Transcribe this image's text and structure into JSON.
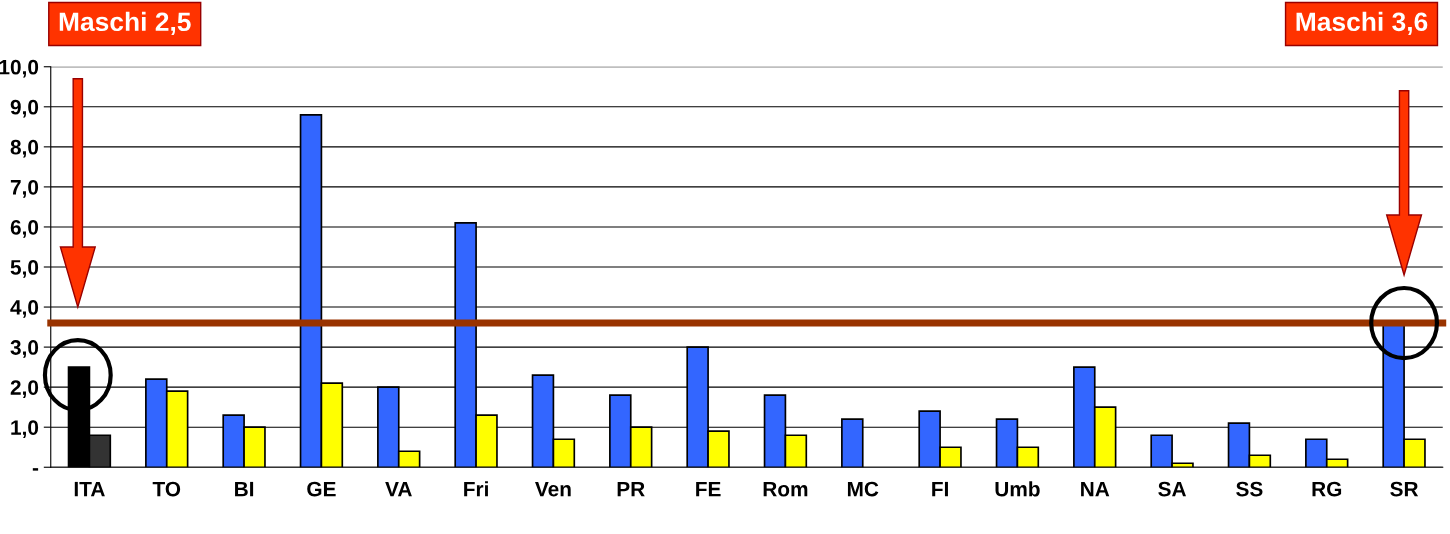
{
  "chart_data": {
    "type": "bar",
    "categories": [
      "ITA",
      "TO",
      "BI",
      "GE",
      "VA",
      "Fri",
      "Ven",
      "PR",
      "FE",
      "Rom",
      "MC",
      "FI",
      "Umb",
      "NA",
      "SA",
      "SS",
      "RG",
      "SR"
    ],
    "series": [
      {
        "colors": [
          "#000000",
          "#3366ff",
          "#3366ff",
          "#3366ff",
          "#3366ff",
          "#3366ff",
          "#3366ff",
          "#3366ff",
          "#3366ff",
          "#3366ff",
          "#3366ff",
          "#3366ff",
          "#3366ff",
          "#3366ff",
          "#3366ff",
          "#3366ff",
          "#3366ff",
          "#3366ff"
        ],
        "values": [
          2.5,
          2.2,
          1.3,
          8.8,
          2.0,
          6.1,
          2.3,
          1.8,
          3.0,
          1.8,
          1.2,
          1.4,
          1.2,
          2.5,
          0.8,
          1.1,
          0.7,
          3.6
        ]
      },
      {
        "colors": [
          "#333333",
          "#ffff00",
          "#ffff00",
          "#ffff00",
          "#ffff00",
          "#ffff00",
          "#ffff00",
          "#ffff00",
          "#ffff00",
          "#ffff00",
          "#ffff00",
          "#ffff00",
          "#ffff00",
          "#ffff00",
          "#ffff00",
          "#ffff00",
          "#ffff00",
          "#ffff00"
        ],
        "values": [
          0.8,
          1.9,
          1.0,
          2.1,
          0.4,
          1.3,
          0.7,
          1.0,
          0.9,
          0.8,
          null,
          0.5,
          0.5,
          1.5,
          0.1,
          0.3,
          0.2,
          0.7
        ]
      }
    ],
    "ylim": [
      0,
      10
    ],
    "yticks": [
      {
        "value": 0,
        "label": "-"
      },
      {
        "value": 1,
        "label": "1,0"
      },
      {
        "value": 2,
        "label": "2,0"
      },
      {
        "value": 3,
        "label": "3,0"
      },
      {
        "value": 4,
        "label": "4,0"
      },
      {
        "value": 5,
        "label": "5,0"
      },
      {
        "value": 6,
        "label": "6,0"
      },
      {
        "value": 7,
        "label": "7,0"
      },
      {
        "value": 8,
        "label": "8,0"
      },
      {
        "value": 9,
        "label": "9,0"
      },
      {
        "value": 10,
        "label": "10,0"
      }
    ],
    "grid": "y",
    "ref_lines": [
      {
        "axis": "y",
        "value": 3.6,
        "color": "#993300"
      }
    ],
    "annotations": [
      "Maschi 2,5",
      "Maschi 3,6"
    ]
  }
}
